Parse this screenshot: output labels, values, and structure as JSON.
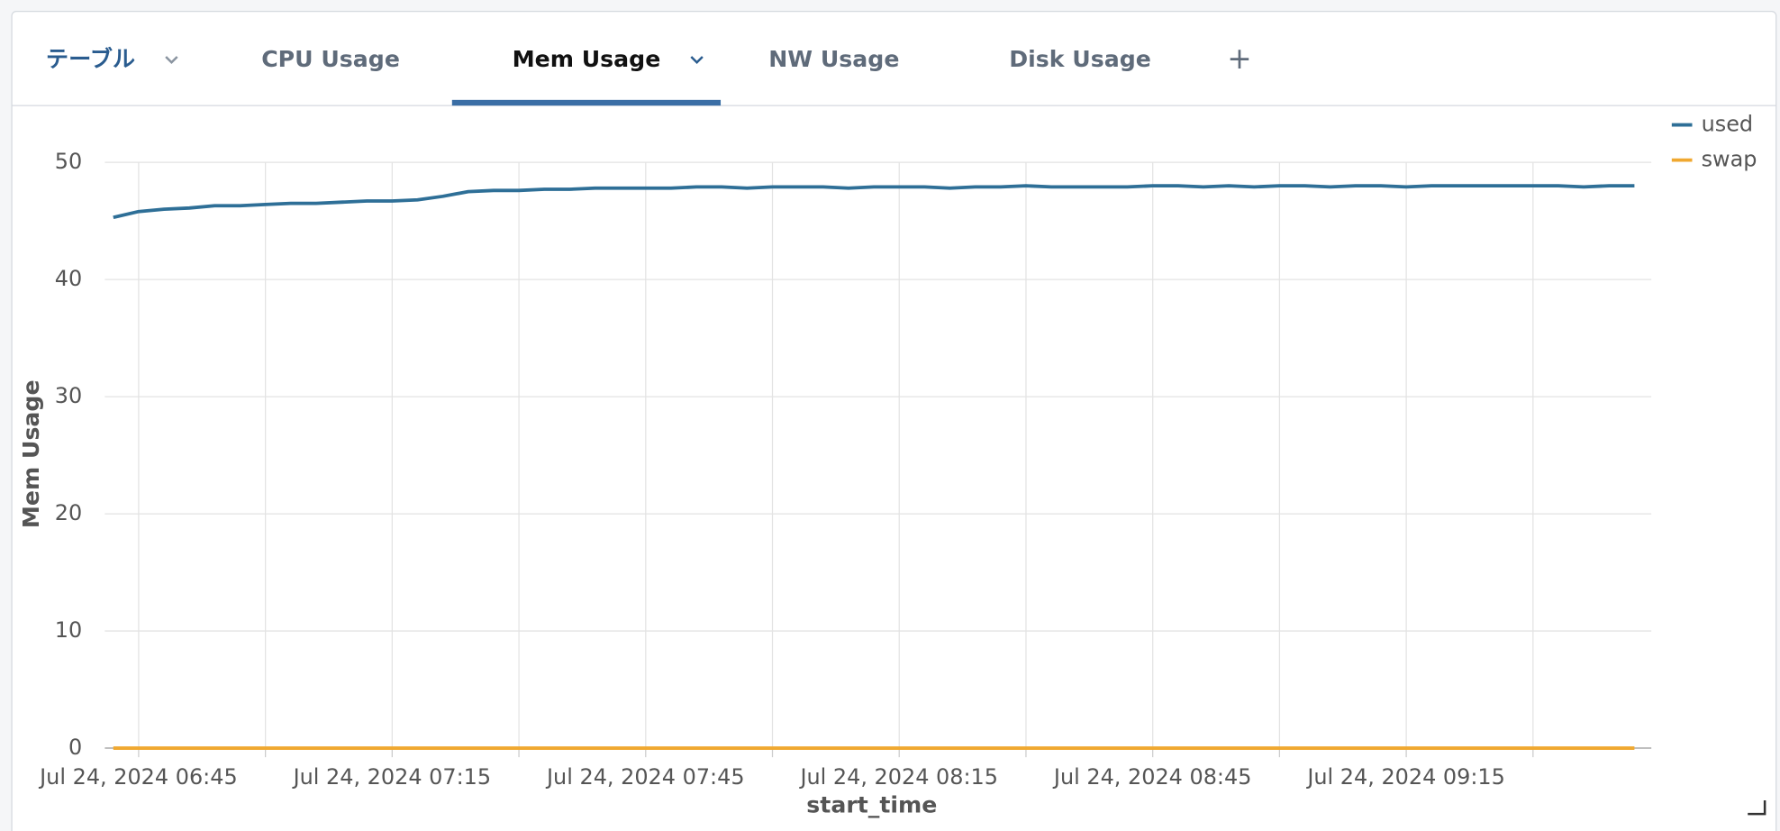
{
  "tabs": [
    {
      "label": "テーブル"
    },
    {
      "label": "CPU Usage"
    },
    {
      "label": "Mem Usage",
      "selected": true
    },
    {
      "label": "NW Usage"
    },
    {
      "label": "Disk Usage"
    }
  ],
  "chart_data": {
    "type": "line",
    "x_title": "start_time",
    "y_title": "Mem Usage",
    "legend": "top-right",
    "grid": true,
    "x": [
      "2024-07-24 06:42",
      "2024-07-24 06:45",
      "2024-07-24 06:48",
      "2024-07-24 06:51",
      "2024-07-24 06:54",
      "2024-07-24 06:57",
      "2024-07-24 07:00",
      "2024-07-24 07:03",
      "2024-07-24 07:06",
      "2024-07-24 07:09",
      "2024-07-24 07:12",
      "2024-07-24 07:15",
      "2024-07-24 07:18",
      "2024-07-24 07:21",
      "2024-07-24 07:24",
      "2024-07-24 07:27",
      "2024-07-24 07:30",
      "2024-07-24 07:33",
      "2024-07-24 07:36",
      "2024-07-24 07:39",
      "2024-07-24 07:42",
      "2024-07-24 07:45",
      "2024-07-24 07:48",
      "2024-07-24 07:51",
      "2024-07-24 07:54",
      "2024-07-24 07:57",
      "2024-07-24 08:00",
      "2024-07-24 08:03",
      "2024-07-24 08:06",
      "2024-07-24 08:09",
      "2024-07-24 08:12",
      "2024-07-24 08:15",
      "2024-07-24 08:18",
      "2024-07-24 08:21",
      "2024-07-24 08:24",
      "2024-07-24 08:27",
      "2024-07-24 08:30",
      "2024-07-24 08:33",
      "2024-07-24 08:36",
      "2024-07-24 08:39",
      "2024-07-24 08:42",
      "2024-07-24 08:45",
      "2024-07-24 08:48",
      "2024-07-24 08:51",
      "2024-07-24 08:54",
      "2024-07-24 08:57",
      "2024-07-24 09:00",
      "2024-07-24 09:03",
      "2024-07-24 09:06",
      "2024-07-24 09:09",
      "2024-07-24 09:12",
      "2024-07-24 09:15",
      "2024-07-24 09:18",
      "2024-07-24 09:21",
      "2024-07-24 09:24",
      "2024-07-24 09:27",
      "2024-07-24 09:30",
      "2024-07-24 09:33",
      "2024-07-24 09:36",
      "2024-07-24 09:39",
      "2024-07-24 09:42"
    ],
    "series": [
      {
        "name": "used",
        "color": "#2e6f97",
        "values": [
          45.3,
          45.8,
          46.0,
          46.1,
          46.3,
          46.3,
          46.4,
          46.5,
          46.5,
          46.6,
          46.7,
          46.7,
          46.8,
          47.1,
          47.5,
          47.6,
          47.6,
          47.7,
          47.7,
          47.8,
          47.8,
          47.8,
          47.8,
          47.9,
          47.9,
          47.8,
          47.9,
          47.9,
          47.9,
          47.8,
          47.9,
          47.9,
          47.9,
          47.8,
          47.9,
          47.9,
          48.0,
          47.9,
          47.9,
          47.9,
          47.9,
          48.0,
          48.0,
          47.9,
          48.0,
          47.9,
          48.0,
          48.0,
          47.9,
          48.0,
          48.0,
          47.9,
          48.0,
          48.0,
          48.0,
          48.0,
          48.0,
          48.0,
          47.9,
          48.0,
          48.0
        ]
      },
      {
        "name": "swap",
        "color": "#f0a830",
        "values": [
          0,
          0,
          0,
          0,
          0,
          0,
          0,
          0,
          0,
          0,
          0,
          0,
          0,
          0,
          0,
          0,
          0,
          0,
          0,
          0,
          0,
          0,
          0,
          0,
          0,
          0,
          0,
          0,
          0,
          0,
          0,
          0,
          0,
          0,
          0,
          0,
          0,
          0,
          0,
          0,
          0,
          0,
          0,
          0,
          0,
          0,
          0,
          0,
          0,
          0,
          0,
          0,
          0,
          0,
          0,
          0,
          0,
          0,
          0,
          0,
          0
        ]
      }
    ],
    "xlim": [
      "2024-07-24 06:41",
      "2024-07-24 09:44"
    ],
    "xticks": [
      {
        "value": "2024-07-24 06:45",
        "label": "Jul 24, 2024 06:45"
      },
      {
        "value": "2024-07-24 07:15",
        "label": "Jul 24, 2024 07:15"
      },
      {
        "value": "2024-07-24 07:45",
        "label": "Jul 24, 2024 07:45"
      },
      {
        "value": "2024-07-24 08:15",
        "label": "Jul 24, 2024 08:15"
      },
      {
        "value": "2024-07-24 08:45",
        "label": "Jul 24, 2024 08:45"
      },
      {
        "value": "2024-07-24 09:15",
        "label": "Jul 24, 2024 09:15"
      }
    ],
    "x_minor_ticks": [
      "2024-07-24 07:00",
      "2024-07-24 07:30",
      "2024-07-24 08:00",
      "2024-07-24 08:30",
      "2024-07-24 09:00",
      "2024-07-24 09:30"
    ],
    "ylim": [
      0,
      50
    ],
    "yticks": [
      0,
      10,
      20,
      30,
      40,
      50
    ]
  }
}
